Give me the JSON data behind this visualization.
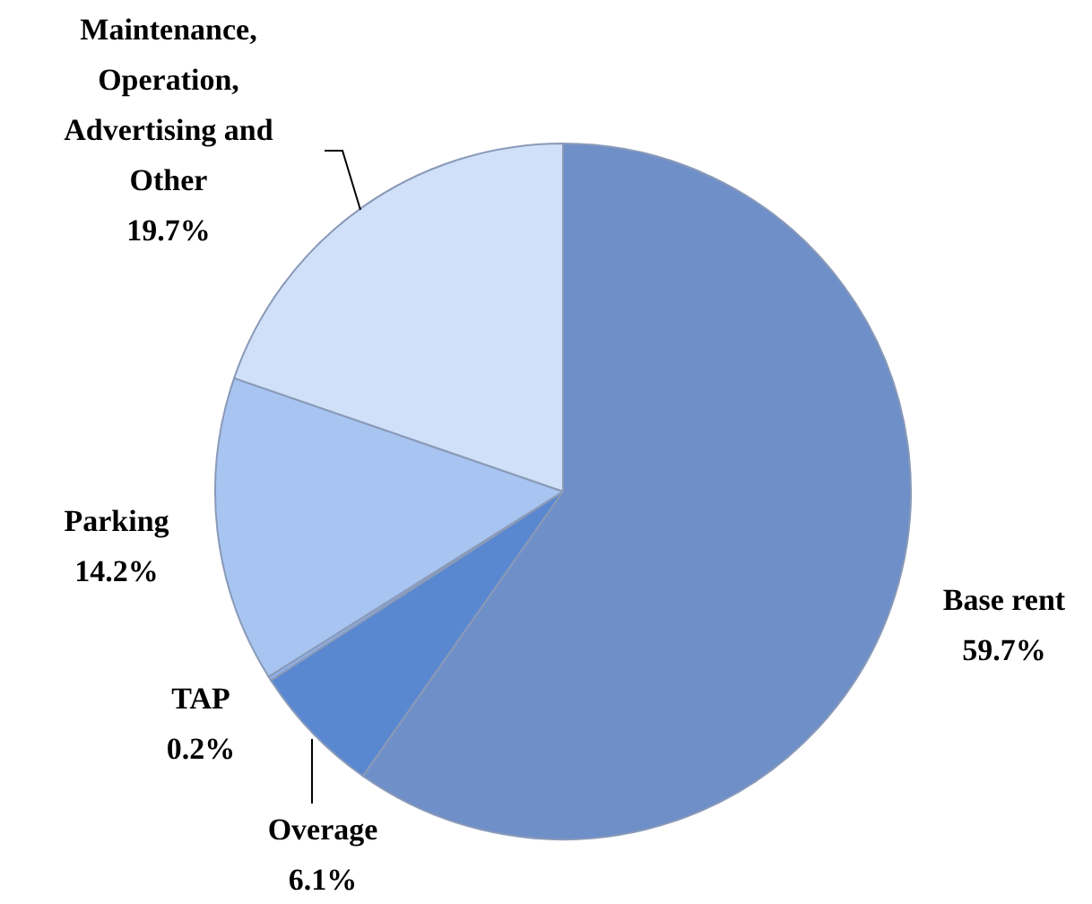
{
  "chart_data": {
    "type": "pie",
    "categories": [
      "Base rent",
      "Overage",
      "TAP",
      "Parking",
      "Maintenance, Operation, Advertising and Other"
    ],
    "values": [
      59.7,
      6.1,
      0.2,
      14.2,
      19.7
    ],
    "colors": [
      "#6f8fc8",
      "#5a88d0",
      "#8fb0e8",
      "#a8c4f0",
      "#cfe0f8"
    ],
    "value_labels": [
      "59.7%",
      "6.1%",
      "0.2%",
      "14.2%",
      "19.7%"
    ]
  }
}
